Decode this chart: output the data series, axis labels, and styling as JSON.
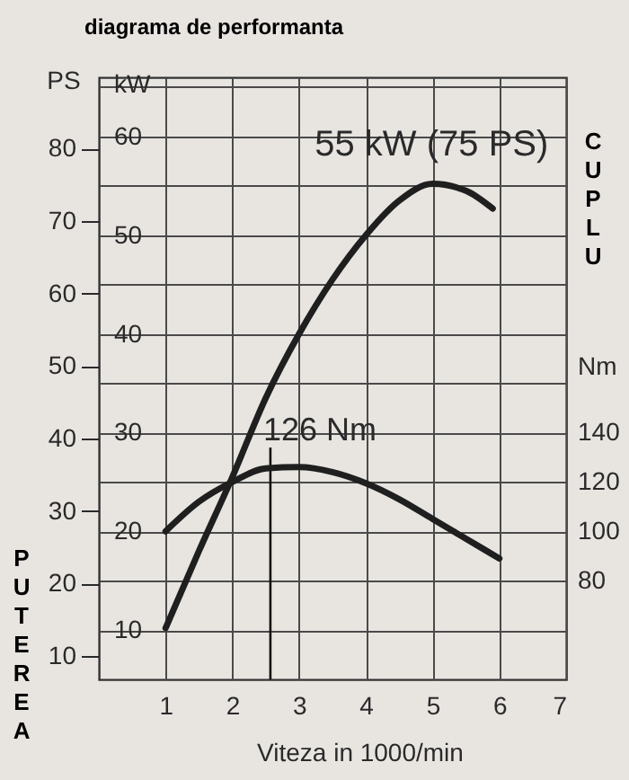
{
  "chart_data": {
    "type": "line",
    "title": "diagrama de performanta",
    "xlabel": "Viteza in 1000/min",
    "ylabel": "kW",
    "y2label": "Nm",
    "y3label": "PS",
    "x": [
      1,
      1.5,
      2,
      2.5,
      3,
      3.5,
      4,
      4.5,
      5,
      5.5,
      5.9
    ],
    "series": [
      {
        "color": "#1f1f1f",
        "values": [
          10.2,
          18,
          25.5,
          33.5,
          40,
          45.5,
          50,
          53.5,
          55.2,
          54.5,
          52.7
        ]
      },
      {
        "color": "#1f1f1f",
        "axis": "y2",
        "x": [
          1,
          1.5,
          2,
          2.5,
          3,
          3.5,
          4,
          4.5,
          5,
          5.5,
          6
        ],
        "values": [
          100,
          112,
          120,
          125.5,
          126,
          124,
          119.5,
          113,
          105,
          97,
          89
        ]
      }
    ],
    "xlim": [
      0,
      7
    ],
    "xticks": [
      1,
      2,
      3,
      4,
      5,
      6,
      7
    ],
    "ylim": [
      5,
      66
    ],
    "yticks": [
      10,
      {
        "value": 15,
        "label": null
      },
      20,
      {
        "value": 25,
        "label": null
      },
      30,
      {
        "value": 35,
        "label": null
      },
      40,
      {
        "value": 45,
        "label": null
      },
      50,
      {
        "value": 55,
        "label": null
      },
      60,
      {
        "value": 65,
        "label": null
      }
    ],
    "y2lim": [
      40,
      284
    ],
    "y2ticks": [
      80,
      100,
      120,
      140
    ],
    "y3lim": [
      6.8,
      89.8
    ],
    "y3ticks": [
      10,
      20,
      30,
      40,
      50,
      60,
      70,
      80
    ],
    "grid": true,
    "marker": "none",
    "line_style": "solid",
    "ref_lines": [
      {
        "axis": "x",
        "value": 2.57
      }
    ],
    "annotations": [
      {
        "text": "55 kW (75 PS)",
        "x": 5.2,
        "y": 55.2
      },
      {
        "text": "126 Nm",
        "x": 2.57,
        "y": 28.5
      },
      "PUTEREA",
      "CUPLU"
    ]
  }
}
